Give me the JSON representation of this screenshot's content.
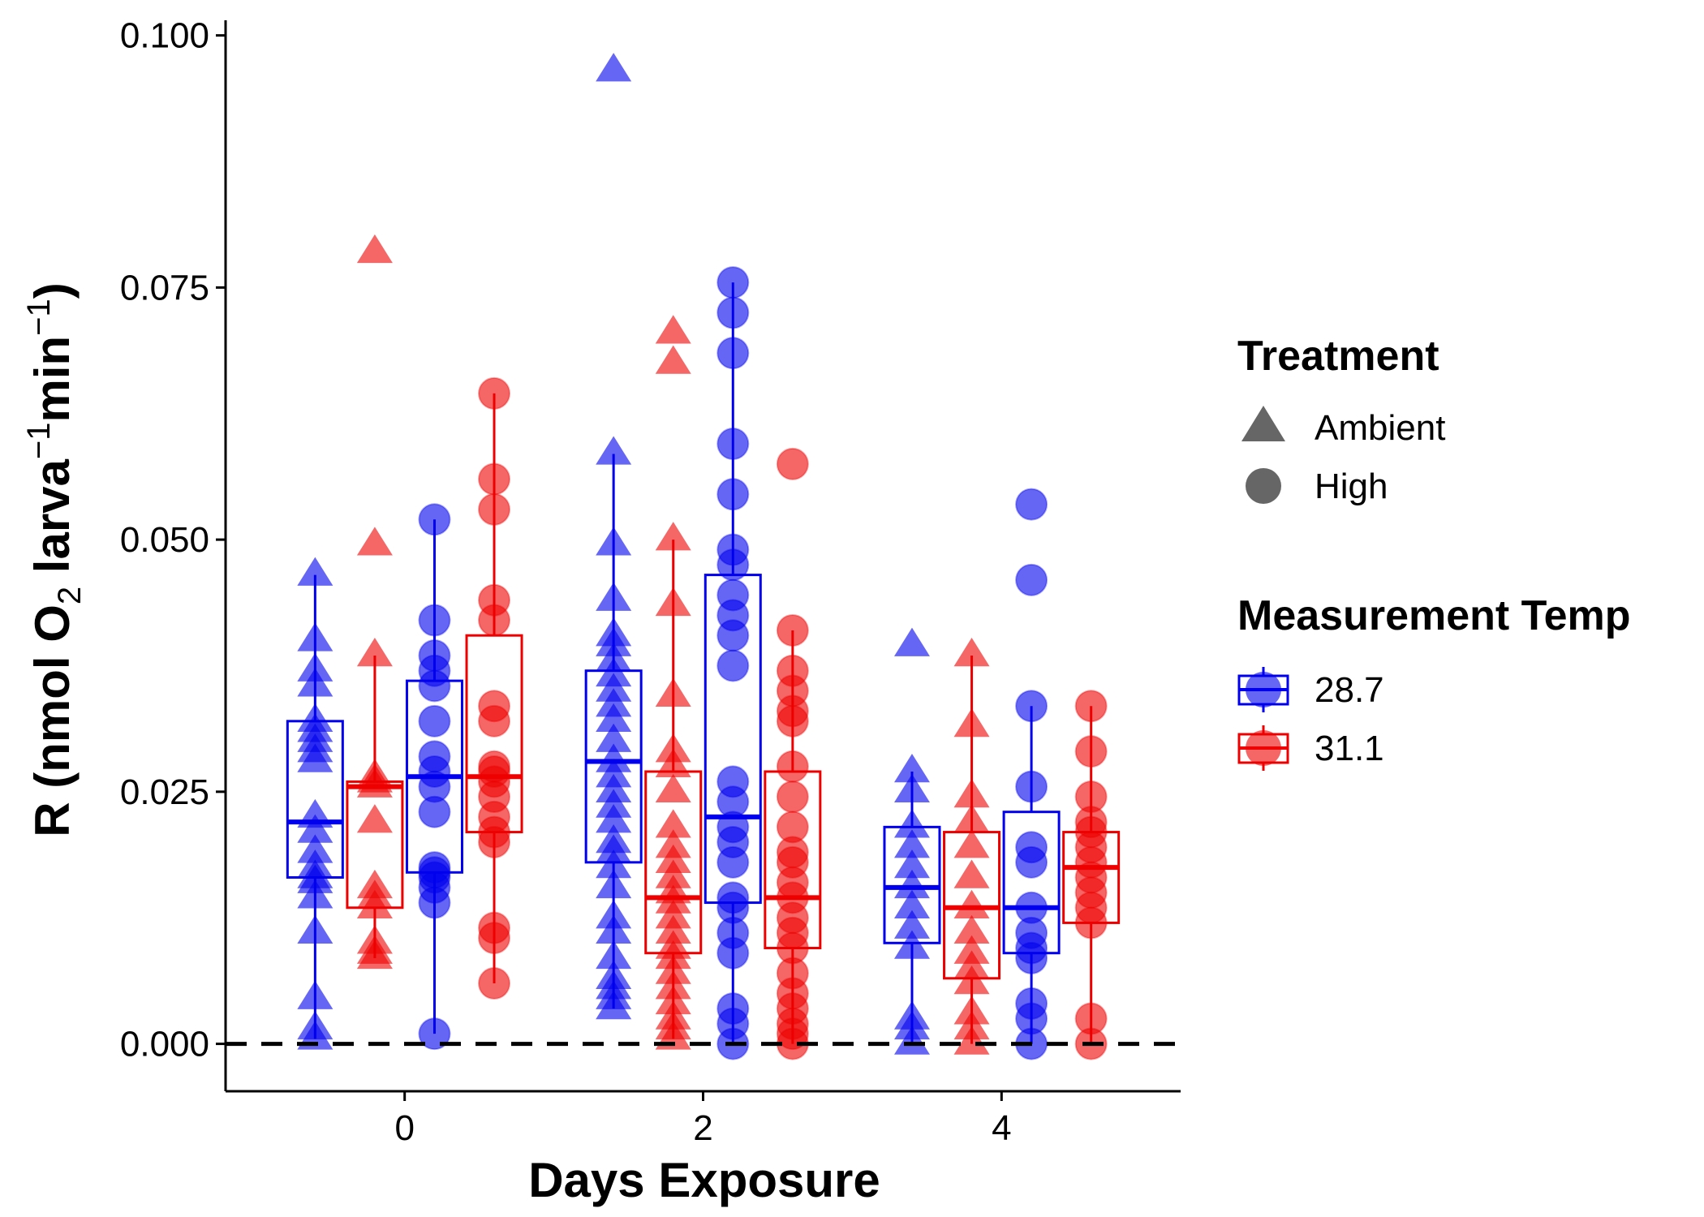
{
  "chart_data": {
    "type": "boxplot",
    "xlabel": "Days Exposure",
    "ylabel_parts": {
      "prefix": "R (nmol O",
      "o2_sub": "2",
      "larva": " larva",
      "larva_sup": "−1",
      "min": "min",
      "min_sup": "−1",
      "suffix": ")"
    },
    "xlim": [
      -1.2,
      5.2
    ],
    "ylim": [
      -0.0047,
      0.1015
    ],
    "x_ticks": [
      0,
      2,
      4
    ],
    "x_tick_labels": [
      "0",
      "2",
      "4"
    ],
    "y_ticks": [
      0,
      0.025,
      0.05,
      0.075,
      0.1
    ],
    "y_tick_labels": [
      "0.000",
      "0.025",
      "0.050",
      "0.075",
      "0.100"
    ],
    "reference_line": {
      "y": 0,
      "style": "dashed",
      "color": "#000000"
    },
    "colors": {
      "28.7": "#0000ee",
      "31.1": "#ee0000"
    },
    "legend": {
      "treatment_title": "Treatment",
      "treatment_items": [
        {
          "label": "Ambient",
          "shape": "triangle"
        },
        {
          "label": "High",
          "shape": "circle"
        }
      ],
      "temp_title": "Measurement Temp",
      "temp_items": [
        {
          "label": "28.7",
          "color": "#0000ee"
        },
        {
          "label": "31.1",
          "color": "#ee0000"
        }
      ]
    },
    "groups": [
      {
        "day": 0,
        "temp": "28.7",
        "treatment": "Ambient",
        "x": -0.6,
        "box": {
          "q1": 0.0165,
          "median": 0.022,
          "q3": 0.032,
          "whisker_low": 0.0005,
          "whisker_high": 0.0465
        },
        "points": [
          0.0465,
          0.04,
          0.037,
          0.0355,
          0.032,
          0.031,
          0.03,
          0.029,
          0.028,
          0.0225,
          0.021,
          0.019,
          0.0175,
          0.0165,
          0.016,
          0.0145,
          0.011,
          0.0045,
          0.0015,
          0.0005
        ]
      },
      {
        "day": 0,
        "temp": "31.1",
        "treatment": "Ambient",
        "x": -0.2,
        "box": {
          "q1": 0.0135,
          "median": 0.0255,
          "q3": 0.026,
          "whisker_low": 0.0085,
          "whisker_high": 0.0385
        },
        "points": [
          0.0785,
          0.0495,
          0.0385,
          0.0265,
          0.026,
          0.0255,
          0.022,
          0.0155,
          0.0145,
          0.0135,
          0.01,
          0.009,
          0.0085
        ]
      },
      {
        "day": 0,
        "temp": "28.7",
        "treatment": "High",
        "x": 0.2,
        "box": {
          "q1": 0.017,
          "median": 0.0265,
          "q3": 0.036,
          "whisker_low": 0.001,
          "whisker_high": 0.052
        },
        "points": [
          0.052,
          0.042,
          0.0385,
          0.037,
          0.0355,
          0.032,
          0.0285,
          0.027,
          0.0255,
          0.023,
          0.0175,
          0.017,
          0.0165,
          0.0155,
          0.014,
          0.001
        ]
      },
      {
        "day": 0,
        "temp": "31.1",
        "treatment": "High",
        "x": 0.6,
        "box": {
          "q1": 0.021,
          "median": 0.0265,
          "q3": 0.0405,
          "whisker_low": 0.006,
          "whisker_high": 0.0645
        },
        "points": [
          0.0645,
          0.056,
          0.053,
          0.044,
          0.042,
          0.0335,
          0.032,
          0.0275,
          0.027,
          0.026,
          0.0245,
          0.0225,
          0.021,
          0.02,
          0.0115,
          0.0105,
          0.006
        ]
      },
      {
        "day": 2,
        "temp": "28.7",
        "treatment": "Ambient",
        "x": 1.4,
        "box": {
          "q1": 0.018,
          "median": 0.028,
          "q3": 0.037,
          "whisker_low": 0.0035,
          "whisker_high": 0.0585
        },
        "points": [
          0.0965,
          0.0585,
          0.0495,
          0.044,
          0.0405,
          0.0395,
          0.038,
          0.0365,
          0.035,
          0.0335,
          0.032,
          0.03,
          0.028,
          0.0265,
          0.025,
          0.0235,
          0.022,
          0.02,
          0.019,
          0.0175,
          0.0155,
          0.0125,
          0.011,
          0.0085,
          0.0065,
          0.0055,
          0.0045,
          0.0035
        ]
      },
      {
        "day": 2,
        "temp": "31.1",
        "treatment": "Ambient",
        "x": 1.8,
        "box": {
          "q1": 0.009,
          "median": 0.0145,
          "q3": 0.027,
          "whisker_low": 0.0005,
          "whisker_high": 0.05
        },
        "points": [
          0.0705,
          0.0675,
          0.05,
          0.0435,
          0.0345,
          0.029,
          0.0275,
          0.025,
          0.0215,
          0.0195,
          0.018,
          0.0165,
          0.015,
          0.014,
          0.0125,
          0.011,
          0.0095,
          0.0085,
          0.007,
          0.0055,
          0.004,
          0.0025,
          0.0015,
          0.0005
        ]
      },
      {
        "day": 2,
        "temp": "28.7",
        "treatment": "High",
        "x": 2.2,
        "box": {
          "q1": 0.014,
          "median": 0.0225,
          "q3": 0.0465,
          "whisker_low": 0.0,
          "whisker_high": 0.0755
        },
        "points": [
          0.0755,
          0.0725,
          0.0685,
          0.0595,
          0.0545,
          0.049,
          0.0475,
          0.0445,
          0.0425,
          0.0405,
          0.0375,
          0.026,
          0.024,
          0.0215,
          0.02,
          0.018,
          0.0145,
          0.0135,
          0.011,
          0.009,
          0.0035,
          0.002,
          0.0
        ]
      },
      {
        "day": 2,
        "temp": "31.1",
        "treatment": "High",
        "x": 2.6,
        "box": {
          "q1": 0.0095,
          "median": 0.0145,
          "q3": 0.027,
          "whisker_low": 0.0,
          "whisker_high": 0.041
        },
        "points": [
          0.0575,
          0.041,
          0.037,
          0.035,
          0.033,
          0.032,
          0.0275,
          0.0245,
          0.0215,
          0.019,
          0.018,
          0.016,
          0.0145,
          0.0125,
          0.011,
          0.0095,
          0.007,
          0.005,
          0.0035,
          0.002,
          0.001,
          0.0
        ]
      },
      {
        "day": 4,
        "temp": "28.7",
        "treatment": "Ambient",
        "x": 3.4,
        "box": {
          "q1": 0.01,
          "median": 0.0155,
          "q3": 0.0215,
          "whisker_low": 0.0,
          "whisker_high": 0.027
        },
        "points": [
          0.0395,
          0.027,
          0.025,
          0.0215,
          0.0195,
          0.0175,
          0.0155,
          0.0135,
          0.0115,
          0.0095,
          0.0025,
          0.0015,
          0.0
        ]
      },
      {
        "day": 4,
        "temp": "31.1",
        "treatment": "Ambient",
        "x": 3.8,
        "box": {
          "q1": 0.0065,
          "median": 0.0135,
          "q3": 0.021,
          "whisker_low": 0.0,
          "whisker_high": 0.0385
        },
        "points": [
          0.0385,
          0.0315,
          0.0245,
          0.022,
          0.0195,
          0.0165,
          0.0135,
          0.011,
          0.009,
          0.0075,
          0.006,
          0.003,
          0.0015,
          0.0
        ]
      },
      {
        "day": 4,
        "temp": "28.7",
        "treatment": "High",
        "x": 4.2,
        "box": {
          "q1": 0.009,
          "median": 0.0135,
          "q3": 0.023,
          "whisker_low": 0.0,
          "whisker_high": 0.0335
        },
        "points": [
          0.0535,
          0.046,
          0.0335,
          0.0255,
          0.0195,
          0.018,
          0.0135,
          0.011,
          0.0095,
          0.0085,
          0.004,
          0.0025,
          0.0
        ]
      },
      {
        "day": 4,
        "temp": "31.1",
        "treatment": "High",
        "x": 4.6,
        "box": {
          "q1": 0.012,
          "median": 0.0175,
          "q3": 0.021,
          "whisker_low": 0.0,
          "whisker_high": 0.0335
        },
        "points": [
          0.0335,
          0.029,
          0.0245,
          0.022,
          0.021,
          0.0195,
          0.018,
          0.0165,
          0.015,
          0.0135,
          0.012,
          0.0025,
          0.0
        ]
      }
    ]
  }
}
